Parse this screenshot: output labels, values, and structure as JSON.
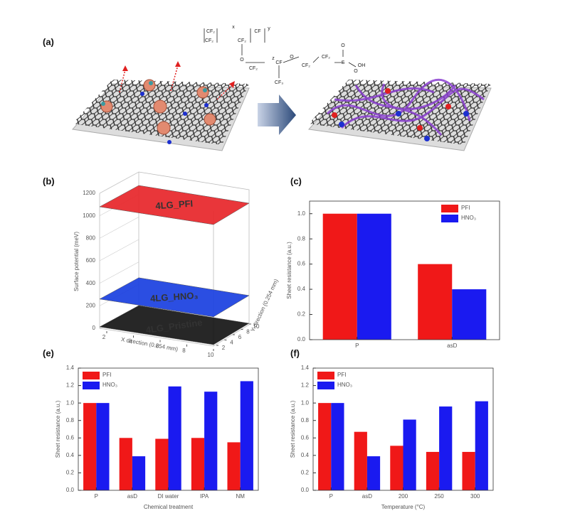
{
  "panel_labels": [
    "(a)",
    "(b)",
    "(c)",
    "(e)",
    "(f)"
  ],
  "panel_a": {
    "structure_labels": [
      "CF₂",
      "CF₂",
      "CF₂",
      "CF",
      "x",
      "y",
      "O",
      "CF₂",
      "CF",
      "z",
      "O",
      "CF₂",
      "CF₂",
      "S",
      "O",
      "O",
      "OH",
      "CF₃"
    ]
  },
  "panel_b": {
    "zlabel": "Surface potential (meV)",
    "xlabel": "X direction (0.254 mm)",
    "ylabel": "Y direction (0.254 mm)",
    "zlim": [
      0,
      1200
    ],
    "zticks": [
      0,
      200,
      400,
      600,
      800,
      1000,
      1200
    ],
    "xticks": [
      2,
      4,
      6,
      8,
      10
    ],
    "yticks": [
      2,
      4,
      6,
      8,
      10
    ],
    "surfaces": [
      {
        "label": "4LG_PFI",
        "color": "#e8262a",
        "value": 1080
      },
      {
        "label": "4LG_HNO₃",
        "color": "#1a3fe0",
        "value": 260
      },
      {
        "label": "4LG_Pristine",
        "color": "#151515",
        "value": 0
      }
    ]
  },
  "chart_data": [
    {
      "type": "bar",
      "ylabel": "Sheet resistance (a.u.)",
      "categories": [
        "P",
        "asD"
      ],
      "series": [
        {
          "name": "PFI",
          "color": "#f01818",
          "values": [
            1.0,
            0.6
          ]
        },
        {
          "name": "HNO₃",
          "color": "#1a1af0",
          "values": [
            1.0,
            0.4
          ]
        }
      ],
      "ylim": [
        0,
        1.1
      ],
      "yticks": [
        {
          "value": 0,
          "label": "0.0"
        },
        {
          "value": 0.2,
          "label": "0.2"
        },
        {
          "value": 0.4,
          "label": "0.4"
        },
        {
          "value": 0.6,
          "label": "0.6"
        },
        {
          "value": 0.8,
          "label": "0.8"
        },
        {
          "value": 1,
          "label": "1.0"
        }
      ],
      "legend": "upper right"
    },
    {
      "type": "bar",
      "ylabel": "Sheet resistance (a.u.)",
      "xlabel": "Chemical treatment",
      "categories": [
        "P",
        "asD",
        "DI water",
        "IPA",
        "NM"
      ],
      "series": [
        {
          "name": "PFI",
          "color": "#f01818",
          "values": [
            1.0,
            0.6,
            0.59,
            0.6,
            0.55
          ]
        },
        {
          "name": "HNO₃",
          "color": "#1a1af0",
          "values": [
            1.0,
            0.39,
            1.19,
            1.13,
            1.25
          ]
        }
      ],
      "ylim": [
        0,
        1.4
      ],
      "yticks": [
        {
          "value": 0,
          "label": "0.0"
        },
        {
          "value": 0.2,
          "label": "0.2"
        },
        {
          "value": 0.4,
          "label": "0.4"
        },
        {
          "value": 0.6,
          "label": "0.6"
        },
        {
          "value": 0.8,
          "label": "0.8"
        },
        {
          "value": 1,
          "label": "1.0"
        },
        {
          "value": 1.2,
          "label": "1.2"
        },
        {
          "value": 1.4,
          "label": "1.4"
        }
      ],
      "legend": "upper left"
    },
    {
      "type": "bar",
      "ylabel": "Sheet resistance (a.u.)",
      "xlabel": "Temperature (°C)",
      "categories": [
        "P",
        "asD",
        "200",
        "250",
        "300"
      ],
      "series": [
        {
          "name": "PFI",
          "color": "#f01818",
          "values": [
            1.0,
            0.67,
            0.51,
            0.44,
            0.44
          ]
        },
        {
          "name": "HNO₃",
          "color": "#1a1af0",
          "values": [
            1.0,
            0.39,
            0.81,
            0.96,
            1.02
          ]
        }
      ],
      "ylim": [
        0,
        1.4
      ],
      "yticks": [
        {
          "value": 0,
          "label": "0.0"
        },
        {
          "value": 0.2,
          "label": "0.2"
        },
        {
          "value": 0.4,
          "label": "0.4"
        },
        {
          "value": 0.6,
          "label": "0.6"
        },
        {
          "value": 0.8,
          "label": "0.8"
        },
        {
          "value": 1,
          "label": "1.0"
        },
        {
          "value": 1.2,
          "label": "1.2"
        },
        {
          "value": 1.4,
          "label": "1.4"
        }
      ],
      "legend": "upper left"
    }
  ]
}
